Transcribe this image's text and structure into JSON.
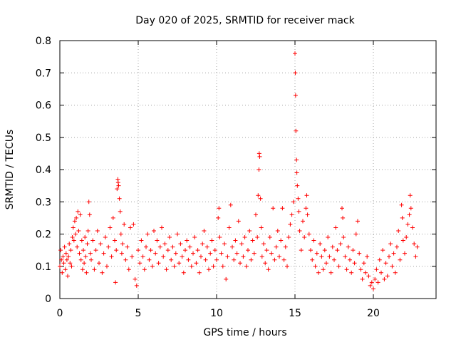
{
  "chart_data": {
    "type": "scatter",
    "title": "Day 020 of 2025, SRMTID for receiver mack",
    "xlabel": "GPS time / hours",
    "ylabel": "SRMTID / TECUs",
    "xlim": [
      0,
      24
    ],
    "ylim": [
      0,
      0.8
    ],
    "x_ticks": [
      0,
      5,
      10,
      15,
      20
    ],
    "x_tick_labels": [
      "0",
      "5",
      "10",
      "15",
      "20"
    ],
    "y_ticks": [
      0,
      0.1,
      0.2,
      0.3,
      0.4,
      0.5,
      0.6,
      0.7,
      0.8
    ],
    "y_tick_labels": [
      "0",
      "0.1",
      "0.2",
      "0.3",
      "0.4",
      "0.5",
      "0.6",
      "0.7",
      "0.8"
    ],
    "grid": true,
    "marker": "+",
    "color": "#ff0000",
    "series": [
      {
        "name": "SRMTID",
        "points": [
          [
            0.0,
            0.1
          ],
          [
            0.05,
            0.15
          ],
          [
            0.1,
            0.12
          ],
          [
            0.15,
            0.08
          ],
          [
            0.2,
            0.13
          ],
          [
            0.25,
            0.11
          ],
          [
            0.3,
            0.16
          ],
          [
            0.35,
            0.09
          ],
          [
            0.4,
            0.14
          ],
          [
            0.45,
            0.12
          ],
          [
            0.5,
            0.07
          ],
          [
            0.55,
            0.13
          ],
          [
            0.6,
            0.17
          ],
          [
            0.65,
            0.11
          ],
          [
            0.7,
            0.15
          ],
          [
            0.75,
            0.1
          ],
          [
            0.8,
            0.19
          ],
          [
            0.85,
            0.22
          ],
          [
            0.9,
            0.18
          ],
          [
            0.95,
            0.24
          ],
          [
            1.0,
            0.2
          ],
          [
            1.05,
            0.25
          ],
          [
            1.1,
            0.16
          ],
          [
            1.15,
            0.27
          ],
          [
            1.2,
            0.21
          ],
          [
            1.25,
            0.14
          ],
          [
            1.3,
            0.26
          ],
          [
            1.35,
            0.12
          ],
          [
            1.4,
            0.18
          ],
          [
            1.45,
            0.09
          ],
          [
            1.5,
            0.15
          ],
          [
            1.55,
            0.11
          ],
          [
            1.6,
            0.19
          ],
          [
            1.65,
            0.13
          ],
          [
            1.7,
            0.08
          ],
          [
            1.75,
            0.17
          ],
          [
            1.8,
            0.21
          ],
          [
            1.85,
            0.3
          ],
          [
            1.9,
            0.26
          ],
          [
            1.95,
            0.14
          ],
          [
            2.0,
            0.12
          ],
          [
            2.1,
            0.18
          ],
          [
            2.2,
            0.09
          ],
          [
            2.3,
            0.15
          ],
          [
            2.4,
            0.21
          ],
          [
            2.5,
            0.11
          ],
          [
            2.6,
            0.17
          ],
          [
            2.7,
            0.08
          ],
          [
            2.8,
            0.14
          ],
          [
            2.9,
            0.19
          ],
          [
            3.0,
            0.1
          ],
          [
            3.1,
            0.16
          ],
          [
            3.2,
            0.22
          ],
          [
            3.3,
            0.13
          ],
          [
            3.4,
            0.25
          ],
          [
            3.5,
            0.18
          ],
          [
            3.55,
            0.05
          ],
          [
            3.6,
            0.15
          ],
          [
            3.65,
            0.34
          ],
          [
            3.7,
            0.37
          ],
          [
            3.72,
            0.36
          ],
          [
            3.75,
            0.35
          ],
          [
            3.8,
            0.31
          ],
          [
            3.85,
            0.27
          ],
          [
            3.9,
            0.2
          ],
          [
            3.95,
            0.14
          ],
          [
            4.0,
            0.17
          ],
          [
            4.1,
            0.23
          ],
          [
            4.2,
            0.12
          ],
          [
            4.3,
            0.16
          ],
          [
            4.4,
            0.09
          ],
          [
            4.5,
            0.22
          ],
          [
            4.6,
            0.13
          ],
          [
            4.7,
            0.23
          ],
          [
            4.8,
            0.06
          ],
          [
            4.9,
            0.04
          ],
          [
            5.0,
            0.15
          ],
          [
            5.1,
            0.11
          ],
          [
            5.2,
            0.18
          ],
          [
            5.3,
            0.13
          ],
          [
            5.4,
            0.09
          ],
          [
            5.5,
            0.16
          ],
          [
            5.6,
            0.2
          ],
          [
            5.7,
            0.12
          ],
          [
            5.8,
            0.15
          ],
          [
            5.9,
            0.1
          ],
          [
            6.0,
            0.21
          ],
          [
            6.1,
            0.14
          ],
          [
            6.2,
            0.18
          ],
          [
            6.3,
            0.11
          ],
          [
            6.4,
            0.16
          ],
          [
            6.5,
            0.22
          ],
          [
            6.6,
            0.13
          ],
          [
            6.7,
            0.17
          ],
          [
            6.8,
            0.09
          ],
          [
            6.9,
            0.15
          ],
          [
            7.0,
            0.19
          ],
          [
            7.1,
            0.12
          ],
          [
            7.2,
            0.16
          ],
          [
            7.3,
            0.1
          ],
          [
            7.4,
            0.14
          ],
          [
            7.5,
            0.2
          ],
          [
            7.6,
            0.11
          ],
          [
            7.7,
            0.17
          ],
          [
            7.8,
            0.13
          ],
          [
            7.9,
            0.08
          ],
          [
            8.0,
            0.15
          ],
          [
            8.1,
            0.18
          ],
          [
            8.2,
            0.12
          ],
          [
            8.3,
            0.16
          ],
          [
            8.4,
            0.1
          ],
          [
            8.5,
            0.14
          ],
          [
            8.6,
            0.19
          ],
          [
            8.7,
            0.11
          ],
          [
            8.8,
            0.15
          ],
          [
            8.9,
            0.08
          ],
          [
            9.0,
            0.13
          ],
          [
            9.1,
            0.17
          ],
          [
            9.2,
            0.21
          ],
          [
            9.3,
            0.12
          ],
          [
            9.4,
            0.16
          ],
          [
            9.5,
            0.09
          ],
          [
            9.6,
            0.14
          ],
          [
            9.7,
            0.18
          ],
          [
            9.8,
            0.1
          ],
          [
            9.9,
            0.15
          ],
          [
            10.0,
            0.12
          ],
          [
            10.1,
            0.25
          ],
          [
            10.15,
            0.28
          ],
          [
            10.2,
            0.19
          ],
          [
            10.3,
            0.14
          ],
          [
            10.4,
            0.1
          ],
          [
            10.5,
            0.17
          ],
          [
            10.6,
            0.06
          ],
          [
            10.7,
            0.13
          ],
          [
            10.8,
            0.22
          ],
          [
            10.9,
            0.29
          ],
          [
            11.0,
            0.16
          ],
          [
            11.1,
            0.12
          ],
          [
            11.2,
            0.18
          ],
          [
            11.3,
            0.14
          ],
          [
            11.4,
            0.24
          ],
          [
            11.5,
            0.11
          ],
          [
            11.6,
            0.17
          ],
          [
            11.7,
            0.13
          ],
          [
            11.8,
            0.19
          ],
          [
            11.9,
            0.1
          ],
          [
            12.0,
            0.15
          ],
          [
            12.1,
            0.21
          ],
          [
            12.2,
            0.12
          ],
          [
            12.3,
            0.18
          ],
          [
            12.4,
            0.14
          ],
          [
            12.5,
            0.26
          ],
          [
            12.6,
            0.19
          ],
          [
            12.65,
            0.32
          ],
          [
            12.7,
            0.4
          ],
          [
            12.72,
            0.45
          ],
          [
            12.75,
            0.44
          ],
          [
            12.8,
            0.31
          ],
          [
            12.85,
            0.22
          ],
          [
            12.9,
            0.13
          ],
          [
            13.0,
            0.17
          ],
          [
            13.1,
            0.11
          ],
          [
            13.2,
            0.15
          ],
          [
            13.3,
            0.09
          ],
          [
            13.4,
            0.19
          ],
          [
            13.5,
            0.14
          ],
          [
            13.6,
            0.28
          ],
          [
            13.7,
            0.12
          ],
          [
            13.8,
            0.16
          ],
          [
            13.9,
            0.21
          ],
          [
            14.0,
            0.13
          ],
          [
            14.1,
            0.18
          ],
          [
            14.2,
            0.28
          ],
          [
            14.3,
            0.12
          ],
          [
            14.4,
            0.16
          ],
          [
            14.5,
            0.1
          ],
          [
            14.6,
            0.19
          ],
          [
            14.7,
            0.23
          ],
          [
            14.8,
            0.26
          ],
          [
            14.9,
            0.3
          ],
          [
            15.0,
            0.76
          ],
          [
            15.02,
            0.7
          ],
          [
            15.04,
            0.63
          ],
          [
            15.06,
            0.52
          ],
          [
            15.1,
            0.43
          ],
          [
            15.12,
            0.39
          ],
          [
            15.15,
            0.35
          ],
          [
            15.2,
            0.31
          ],
          [
            15.25,
            0.27
          ],
          [
            15.3,
            0.21
          ],
          [
            15.4,
            0.15
          ],
          [
            15.5,
            0.24
          ],
          [
            15.6,
            0.19
          ],
          [
            15.7,
            0.28
          ],
          [
            15.75,
            0.32
          ],
          [
            15.8,
            0.26
          ],
          [
            15.9,
            0.2
          ],
          [
            16.0,
            0.15
          ],
          [
            16.1,
            0.12
          ],
          [
            16.2,
            0.18
          ],
          [
            16.3,
            0.1
          ],
          [
            16.4,
            0.14
          ],
          [
            16.5,
            0.08
          ],
          [
            16.6,
            0.17
          ],
          [
            16.7,
            0.13
          ],
          [
            16.8,
            0.09
          ],
          [
            16.9,
            0.15
          ],
          [
            17.0,
            0.11
          ],
          [
            17.1,
            0.19
          ],
          [
            17.2,
            0.13
          ],
          [
            17.3,
            0.08
          ],
          [
            17.4,
            0.16
          ],
          [
            17.5,
            0.12
          ],
          [
            17.6,
            0.22
          ],
          [
            17.7,
            0.15
          ],
          [
            17.8,
            0.1
          ],
          [
            17.9,
            0.17
          ],
          [
            18.0,
            0.28
          ],
          [
            18.05,
            0.25
          ],
          [
            18.1,
            0.19
          ],
          [
            18.2,
            0.13
          ],
          [
            18.3,
            0.09
          ],
          [
            18.4,
            0.16
          ],
          [
            18.5,
            0.12
          ],
          [
            18.6,
            0.08
          ],
          [
            18.7,
            0.15
          ],
          [
            18.8,
            0.11
          ],
          [
            18.9,
            0.2
          ],
          [
            19.0,
            0.24
          ],
          [
            19.1,
            0.14
          ],
          [
            19.2,
            0.09
          ],
          [
            19.3,
            0.06
          ],
          [
            19.4,
            0.11
          ],
          [
            19.5,
            0.08
          ],
          [
            19.6,
            0.13
          ],
          [
            19.7,
            0.07
          ],
          [
            19.8,
            0.04
          ],
          [
            19.9,
            0.05
          ],
          [
            20.0,
            0.03
          ],
          [
            20.1,
            0.06
          ],
          [
            20.2,
            0.09
          ],
          [
            20.3,
            0.05
          ],
          [
            20.4,
            0.12
          ],
          [
            20.5,
            0.08
          ],
          [
            20.6,
            0.15
          ],
          [
            20.7,
            0.06
          ],
          [
            20.8,
            0.11
          ],
          [
            20.9,
            0.07
          ],
          [
            21.0,
            0.13
          ],
          [
            21.1,
            0.17
          ],
          [
            21.2,
            0.1
          ],
          [
            21.3,
            0.14
          ],
          [
            21.4,
            0.08
          ],
          [
            21.5,
            0.16
          ],
          [
            21.6,
            0.21
          ],
          [
            21.7,
            0.12
          ],
          [
            21.8,
            0.29
          ],
          [
            21.85,
            0.25
          ],
          [
            21.9,
            0.18
          ],
          [
            22.0,
            0.14
          ],
          [
            22.1,
            0.19
          ],
          [
            22.2,
            0.23
          ],
          [
            22.3,
            0.26
          ],
          [
            22.35,
            0.32
          ],
          [
            22.4,
            0.28
          ],
          [
            22.5,
            0.22
          ],
          [
            22.6,
            0.17
          ],
          [
            22.7,
            0.13
          ],
          [
            22.8,
            0.16
          ]
        ]
      }
    ]
  }
}
